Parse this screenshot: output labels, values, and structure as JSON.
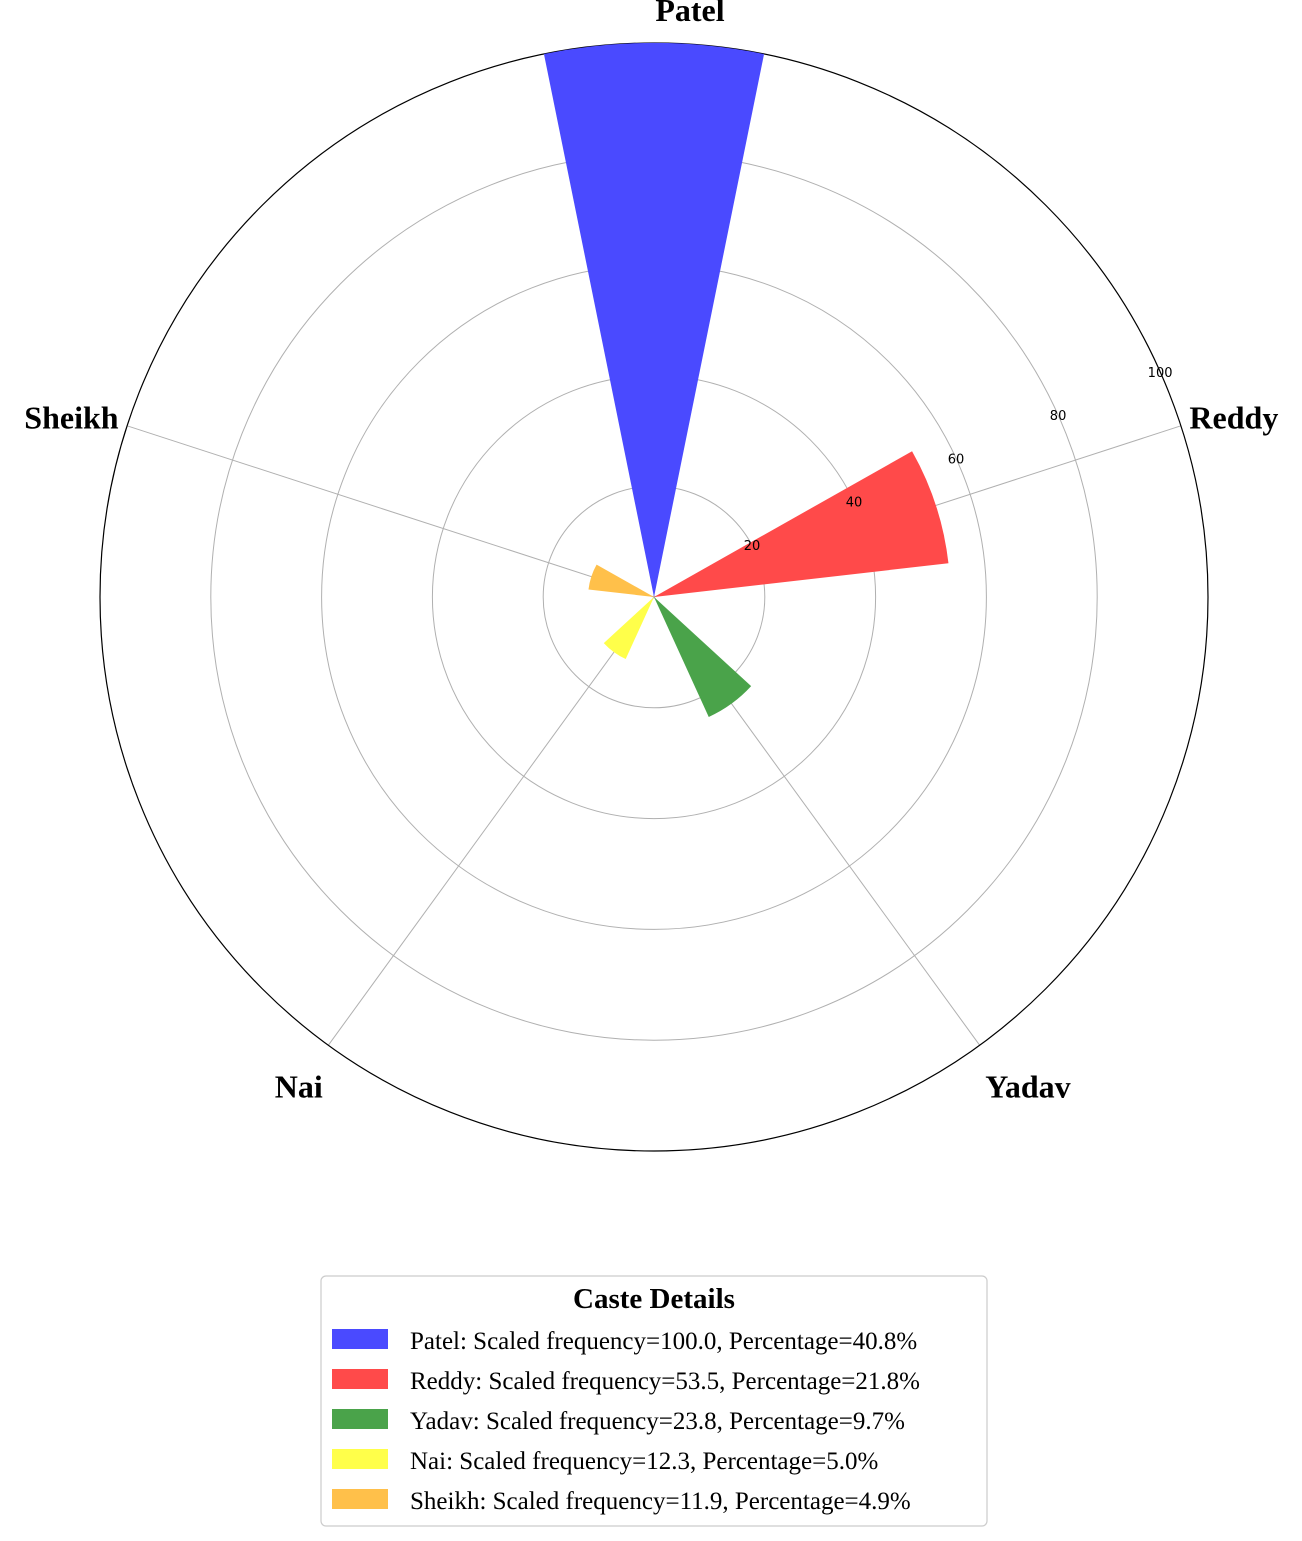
{
  "chart_data": {
    "type": "bar",
    "subtype": "polar",
    "categories": [
      "Patel",
      "Reddy",
      "Yadav",
      "Nai",
      "Sheikh"
    ],
    "values": [
      100.0,
      53.5,
      23.8,
      12.3,
      11.9
    ],
    "colors": [
      "#4a4aff",
      "#ff4a4a",
      "#4aa34a",
      "#ffff4a",
      "#ffc04a"
    ],
    "rticks": [
      20,
      40,
      60,
      80,
      100
    ],
    "rlim": [
      0,
      100
    ],
    "grid": true,
    "legend": {
      "title": "Caste Details",
      "placement": "bottom-center",
      "entries": [
        "Patel: Scaled frequency=100.0, Percentage=40.8%",
        "Reddy: Scaled frequency=53.5, Percentage=21.8%",
        "Yadav: Scaled frequency=23.8, Percentage=9.7%",
        "Nai: Scaled frequency=12.3, Percentage=5.0%",
        "Sheikh: Scaled frequency=11.9, Percentage=4.9%"
      ]
    }
  }
}
